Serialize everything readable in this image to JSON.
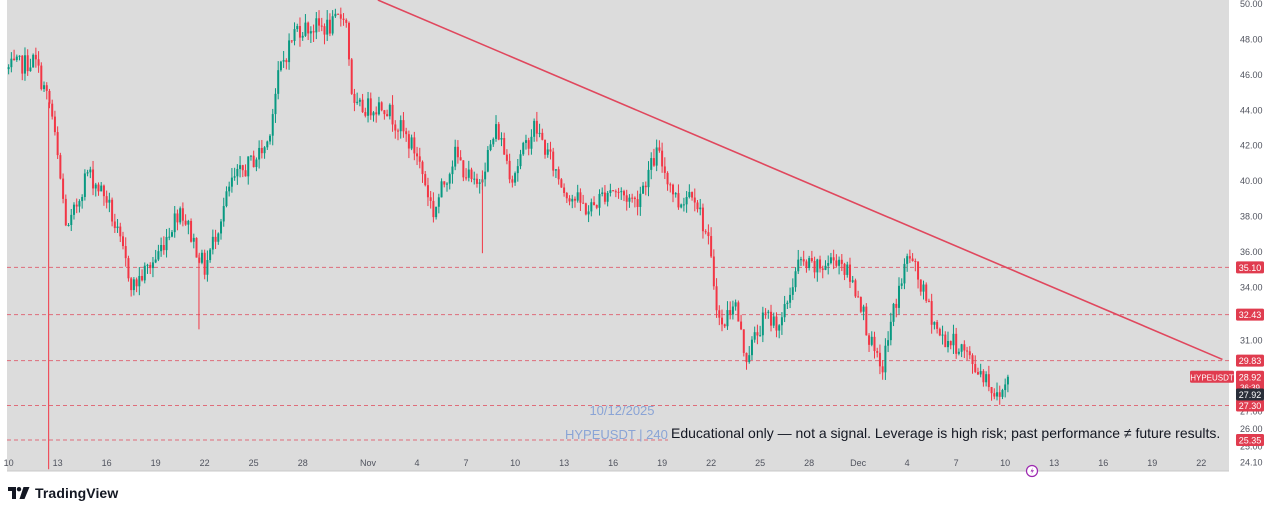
{
  "brand": {
    "name": "TradingView",
    "logo_icon": "tradingview-logo-icon"
  },
  "colors": {
    "background": "#dcdcdc",
    "up": "#089981",
    "down": "#f23645",
    "trendline": "#e0475d",
    "level_line": "#e05a6a",
    "level_label": "#e03c4f",
    "current_label": "#2a2e39",
    "watermark": "#8aa4d6",
    "axis_text": "#50535e"
  },
  "chart_data": {
    "type": "candlestick",
    "symbol_label": "HYPEUSDT",
    "watermark_date": "10/12/2025",
    "watermark_line": "HYPEUSDT | 240",
    "disclaimer": "Educational only — not a signal. Leverage is high risk; past performance ≠ future results.",
    "ylim": [
      23.6,
      50.2
    ],
    "y_ticks": [
      "50.00",
      "48.00",
      "46.00",
      "44.00",
      "42.00",
      "40.00",
      "38.00",
      "36.00",
      "34.00",
      "31.00",
      "29.00",
      "27.00",
      "26.00",
      "25.00",
      "24.10"
    ],
    "y_tick_values": [
      50.0,
      48.0,
      46.0,
      44.0,
      42.0,
      40.0,
      38.0,
      36.0,
      34.0,
      31.0,
      29.0,
      27.0,
      26.0,
      25.0,
      24.1
    ],
    "x_ticks": [
      "10",
      "13",
      "16",
      "19",
      "22",
      "25",
      "28",
      "Nov",
      "4",
      "7",
      "10",
      "13",
      "16",
      "19",
      "22",
      "25",
      "28",
      "Dec",
      "4",
      "7",
      "10",
      "13",
      "16",
      "19",
      "22"
    ],
    "x_tick_days": [
      10,
      13,
      16,
      19,
      22,
      25,
      28,
      32,
      35,
      38,
      41,
      44,
      47,
      50,
      53,
      56,
      59,
      62,
      65,
      68,
      71,
      74,
      77,
      80,
      83
    ],
    "x_range_days": [
      9.9,
      84.7
    ],
    "day_note": "",
    "levels": [
      {
        "value": 35.1,
        "label": "35.10"
      },
      {
        "value": 32.43,
        "label": "32.43"
      },
      {
        "value": 29.83,
        "label": "29.83"
      },
      {
        "value": 27.3,
        "label": "27.30"
      },
      {
        "value": 25.35,
        "label": "25.35"
      }
    ],
    "current": {
      "price": 28.92,
      "price_label": "28.92",
      "countdown": "36:39",
      "low_label": "27.92",
      "low_value": 27.92
    },
    "trendline": {
      "from": {
        "day": 32.6,
        "price": 50.2
      },
      "to": {
        "day": 84.3,
        "price": 29.9
      }
    },
    "key_points": [
      {
        "day": 10.0,
        "price": 46.3
      },
      {
        "day": 11.6,
        "price": 46.8
      },
      {
        "day": 12.6,
        "price": 44.0
      },
      {
        "day": 13.6,
        "price": 37.0
      },
      {
        "day": 14.8,
        "price": 40.5
      },
      {
        "day": 16.0,
        "price": 39.0
      },
      {
        "day": 17.6,
        "price": 34.0
      },
      {
        "day": 19.0,
        "price": 35.6
      },
      {
        "day": 20.5,
        "price": 38.5
      },
      {
        "day": 22.0,
        "price": 35.0
      },
      {
        "day": 23.6,
        "price": 39.8
      },
      {
        "day": 25.8,
        "price": 42.0
      },
      {
        "day": 26.6,
        "price": 46.3
      },
      {
        "day": 27.6,
        "price": 48.6
      },
      {
        "day": 29.8,
        "price": 48.7
      },
      {
        "day": 30.6,
        "price": 49.6
      },
      {
        "day": 31.1,
        "price": 44.0
      },
      {
        "day": 33.0,
        "price": 44.3
      },
      {
        "day": 35.0,
        "price": 41.5
      },
      {
        "day": 36.0,
        "price": 38.2
      },
      {
        "day": 37.3,
        "price": 41.5
      },
      {
        "day": 38.6,
        "price": 39.5
      },
      {
        "day": 39.9,
        "price": 43.0
      },
      {
        "day": 40.8,
        "price": 40.2
      },
      {
        "day": 42.2,
        "price": 43.1
      },
      {
        "day": 44.0,
        "price": 39.5
      },
      {
        "day": 45.5,
        "price": 38.3
      },
      {
        "day": 46.8,
        "price": 39.6
      },
      {
        "day": 48.4,
        "price": 38.8
      },
      {
        "day": 49.7,
        "price": 41.6
      },
      {
        "day": 51.0,
        "price": 38.7
      },
      {
        "day": 51.9,
        "price": 39.6
      },
      {
        "day": 52.8,
        "price": 36.6
      },
      {
        "day": 53.6,
        "price": 31.5
      },
      {
        "day": 54.4,
        "price": 33.4
      },
      {
        "day": 55.1,
        "price": 30.0
      },
      {
        "day": 56.3,
        "price": 32.3
      },
      {
        "day": 57.3,
        "price": 31.9
      },
      {
        "day": 58.3,
        "price": 35.3
      },
      {
        "day": 59.5,
        "price": 35.0
      },
      {
        "day": 60.8,
        "price": 35.7
      },
      {
        "day": 62.1,
        "price": 33.4
      },
      {
        "day": 62.7,
        "price": 31.0
      },
      {
        "day": 63.4,
        "price": 29.1
      },
      {
        "day": 64.2,
        "price": 32.8
      },
      {
        "day": 65.1,
        "price": 35.9
      },
      {
        "day": 66.0,
        "price": 33.6
      },
      {
        "day": 67.0,
        "price": 31.2
      },
      {
        "day": 68.3,
        "price": 30.6
      },
      {
        "day": 69.1,
        "price": 29.5
      },
      {
        "day": 69.8,
        "price": 29.0
      },
      {
        "day": 70.5,
        "price": 27.7
      },
      {
        "day": 71.3,
        "price": 28.92
      }
    ],
    "spikes": [
      {
        "day": 12.45,
        "low": 23.7
      },
      {
        "day": 21.65,
        "low": 31.6
      },
      {
        "day": 39.0,
        "low": 35.9
      }
    ]
  }
}
